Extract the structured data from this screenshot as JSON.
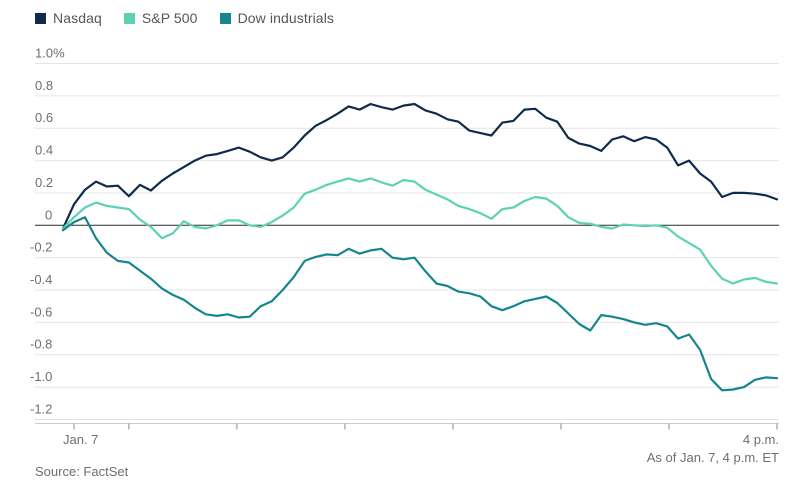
{
  "legend": {
    "items": [
      {
        "label": "Nasdaq",
        "color": "#0f2b4b"
      },
      {
        "label": "S&P 500",
        "color": "#5ed1b4"
      },
      {
        "label": "Dow industrials",
        "color": "#15868d"
      }
    ]
  },
  "footer": {
    "as_of": "As of Jan. 7, 4 p.m. ET",
    "source": "Source: FactSet"
  },
  "chart_data": {
    "type": "line",
    "title": "",
    "xlabel": "",
    "ylabel": "",
    "x_axis": {
      "range_minutes": [
        0,
        390
      ],
      "tick_minutes": [
        6,
        36,
        95,
        154,
        213,
        272,
        331,
        390
      ],
      "labels": [
        {
          "text": "Jan. 7",
          "minute": 6,
          "align": "start"
        },
        {
          "text": "4 p.m.",
          "minute": 390,
          "align": "end"
        }
      ]
    },
    "y_axis": {
      "range": [
        -1.2,
        1.0
      ],
      "tick_values": [
        1.0,
        0.8,
        0.6,
        0.4,
        0.2,
        0,
        -0.2,
        -0.4,
        -0.6,
        -0.8,
        -1.0,
        -1.2
      ],
      "tick_labels": [
        "1.0%",
        "0.8",
        "0.6",
        "0.4",
        "0.2",
        "0",
        "-0.2",
        "-0.4",
        "-0.6",
        "-0.8",
        "-1.0",
        "-1.2"
      ],
      "grid": true,
      "zero_line": true
    },
    "x_start_minute": 0,
    "x_step_minutes": 6,
    "series": [
      {
        "name": "Nasdaq",
        "color": "#0f2b4b",
        "values": [
          -0.02,
          0.13,
          0.22,
          0.27,
          0.24,
          0.245,
          0.18,
          0.25,
          0.215,
          0.275,
          0.32,
          0.36,
          0.4,
          0.43,
          0.44,
          0.46,
          0.48,
          0.455,
          0.42,
          0.4,
          0.42,
          0.48,
          0.555,
          0.615,
          0.65,
          0.69,
          0.735,
          0.715,
          0.75,
          0.73,
          0.715,
          0.74,
          0.75,
          0.71,
          0.69,
          0.655,
          0.64,
          0.585,
          0.57,
          0.555,
          0.635,
          0.645,
          0.715,
          0.72,
          0.665,
          0.64,
          0.54,
          0.505,
          0.49,
          0.46,
          0.53,
          0.55,
          0.52,
          0.545,
          0.53,
          0.48,
          0.37,
          0.4,
          0.32,
          0.27,
          0.175,
          0.2,
          0.2,
          0.195,
          0.185,
          0.16
        ]
      },
      {
        "name": "S&P 500",
        "color": "#5ed1b4",
        "values": [
          -0.02,
          0.05,
          0.11,
          0.14,
          0.12,
          0.11,
          0.1,
          0.035,
          -0.01,
          -0.08,
          -0.05,
          0.025,
          -0.01,
          -0.02,
          0.0,
          0.03,
          0.03,
          0.0,
          -0.01,
          0.02,
          0.06,
          0.11,
          0.195,
          0.22,
          0.25,
          0.27,
          0.29,
          0.27,
          0.29,
          0.265,
          0.245,
          0.28,
          0.27,
          0.22,
          0.19,
          0.16,
          0.12,
          0.1,
          0.075,
          0.04,
          0.1,
          0.11,
          0.15,
          0.175,
          0.165,
          0.12,
          0.05,
          0.015,
          0.01,
          -0.01,
          -0.02,
          0.005,
          0.0,
          -0.005,
          0.0,
          -0.015,
          -0.07,
          -0.11,
          -0.15,
          -0.25,
          -0.33,
          -0.36,
          -0.335,
          -0.325,
          -0.35,
          -0.36
        ]
      },
      {
        "name": "Dow industrials",
        "color": "#15868d",
        "values": [
          -0.03,
          0.02,
          0.05,
          -0.08,
          -0.17,
          -0.22,
          -0.23,
          -0.28,
          -0.33,
          -0.39,
          -0.43,
          -0.46,
          -0.51,
          -0.55,
          -0.56,
          -0.55,
          -0.57,
          -0.565,
          -0.5,
          -0.47,
          -0.4,
          -0.32,
          -0.22,
          -0.195,
          -0.18,
          -0.185,
          -0.145,
          -0.175,
          -0.155,
          -0.145,
          -0.2,
          -0.21,
          -0.2,
          -0.285,
          -0.36,
          -0.375,
          -0.41,
          -0.42,
          -0.44,
          -0.5,
          -0.525,
          -0.5,
          -0.47,
          -0.455,
          -0.44,
          -0.48,
          -0.545,
          -0.61,
          -0.65,
          -0.555,
          -0.565,
          -0.58,
          -0.6,
          -0.615,
          -0.605,
          -0.625,
          -0.7,
          -0.675,
          -0.77,
          -0.95,
          -1.02,
          -1.015,
          -1.0,
          -0.955,
          -0.94,
          -0.945
        ]
      }
    ],
    "legend_position": "top-left",
    "grid": "horizontal-only"
  }
}
